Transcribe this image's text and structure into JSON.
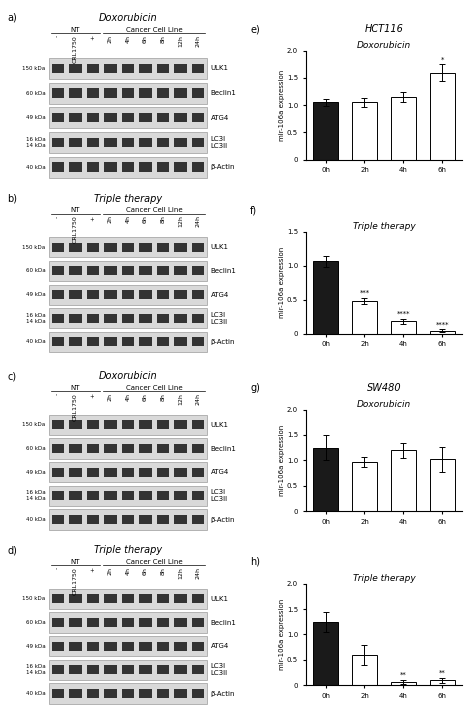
{
  "chart_data": [
    {
      "type": "blot",
      "panel_label": "a)",
      "title": "Doxorubicin",
      "lane_groups": [
        {
          "name": "NT",
          "lanes": [
            "-",
            "CRL1750",
            "+"
          ]
        },
        {
          "name": "Cancer Cell Line",
          "lanes": [
            "2h",
            "4h",
            "6h",
            "8h",
            "12h",
            "24h"
          ]
        }
      ],
      "bands": [
        "ULK1",
        "Beclin1",
        "ATG4",
        "LC3I\nLC3II",
        "β-Actin"
      ],
      "band_sizes": [
        "150 kDa",
        "60 kDa",
        "49 kDa",
        "16 kDa\n14 kDa",
        "40 kDa"
      ]
    },
    {
      "type": "blot",
      "panel_label": "b)",
      "title": "Triple therapy",
      "lane_groups": [
        {
          "name": "NT",
          "lanes": [
            "-",
            "CRL1750",
            "+"
          ]
        },
        {
          "name": "Cancer Cell Line",
          "lanes": [
            "2h",
            "4h",
            "6h",
            "8h",
            "12h",
            "24h"
          ]
        }
      ],
      "bands": [
        "ULK1",
        "Beclin1",
        "ATG4",
        "LC3I\nLC3II",
        "β-Actin"
      ],
      "band_sizes": [
        "150 kDa",
        "60 kDa",
        "49 kDa",
        "16 kDa\n14 kDa",
        "40 kDa"
      ]
    },
    {
      "type": "blot",
      "panel_label": "c)",
      "title": "Doxorubicin",
      "lane_groups": [
        {
          "name": "NT",
          "lanes": [
            "-",
            "CRL1750",
            "+"
          ]
        },
        {
          "name": "Cancer Cell Line",
          "lanes": [
            "2h",
            "4h",
            "6h",
            "8h",
            "12h",
            "24h"
          ]
        }
      ],
      "bands": [
        "ULK1",
        "Beclin1",
        "ATG4",
        "LC3I\nLC3II",
        "β-Actin"
      ],
      "band_sizes": [
        "150 kDa",
        "60 kDa",
        "49 kDa",
        "16 kDa\n14 kDa",
        "40 kDa"
      ]
    },
    {
      "type": "blot",
      "panel_label": "d)",
      "title": "Triple therapy",
      "lane_groups": [
        {
          "name": "NT",
          "lanes": [
            "-",
            "CRL1750",
            "+"
          ]
        },
        {
          "name": "Cancer Cell Line",
          "lanes": [
            "2h",
            "4h",
            "6h",
            "8h",
            "12h",
            "24h"
          ]
        }
      ],
      "bands": [
        "ULK1",
        "Beclin1",
        "ATG4",
        "LC3I\nLC3II",
        "β-Actin"
      ],
      "band_sizes": [
        "150 kDa",
        "60 kDa",
        "49 kDa",
        "16 kDa\n14 kDa",
        "40 kDa"
      ]
    },
    {
      "type": "bar",
      "panel_label": "e)",
      "subtitle": "HCT116",
      "title": "Doxorubicin",
      "categories": [
        "0h",
        "2h",
        "4h",
        "6h"
      ],
      "values": [
        1.05,
        1.05,
        1.15,
        1.6
      ],
      "errors": [
        0.07,
        0.08,
        0.1,
        0.15
      ],
      "colors": [
        "#1a1a1a",
        "#ffffff",
        "#ffffff",
        "#ffffff"
      ],
      "ylabel": "mir-106a expression",
      "ylim": [
        0,
        2.0
      ],
      "yticks": [
        0,
        0.5,
        {
          "value": 1.0,
          "label": "1.0"
        },
        1.5,
        {
          "value": 2.0,
          "label": "2.0"
        }
      ],
      "annotations": [
        {
          "category": "6h",
          "text": "*"
        }
      ]
    },
    {
      "type": "bar",
      "panel_label": "f)",
      "title": "Triple therapy",
      "categories": [
        "0h",
        "2h",
        "4h",
        "6h"
      ],
      "values": [
        1.07,
        0.48,
        0.18,
        0.04
      ],
      "errors": [
        0.08,
        0.05,
        0.04,
        0.02
      ],
      "colors": [
        "#1a1a1a",
        "#ffffff",
        "#ffffff",
        "#ffffff"
      ],
      "ylabel": "mir-106a expression",
      "ylim": [
        0,
        1.5
      ],
      "yticks": [
        0,
        0.5,
        {
          "value": 1.0,
          "label": "1.0"
        },
        1.5
      ],
      "annotations": [
        {
          "category": "2h",
          "text": "***"
        },
        {
          "category": "4h",
          "text": "****"
        },
        {
          "category": "6h",
          "text": "****"
        }
      ]
    },
    {
      "type": "bar",
      "panel_label": "g)",
      "subtitle": "SW480",
      "title": "Doxorubicin",
      "categories": [
        "0h",
        "2h",
        "4h",
        "6h"
      ],
      "values": [
        1.25,
        0.97,
        1.2,
        1.02
      ],
      "errors": [
        0.25,
        0.1,
        0.15,
        0.25
      ],
      "colors": [
        "#1a1a1a",
        "#ffffff",
        "#ffffff",
        "#ffffff"
      ],
      "ylabel": "mir-106a expression",
      "ylim": [
        0,
        2.0
      ],
      "yticks": [
        0,
        0.5,
        {
          "value": 1.0,
          "label": "1.0"
        },
        1.5,
        {
          "value": 2.0,
          "label": "2.0"
        }
      ]
    },
    {
      "type": "bar",
      "panel_label": "h)",
      "title": "Triple therapy",
      "categories": [
        "0h",
        "2h",
        "4h",
        "6h"
      ],
      "values": [
        1.25,
        0.6,
        0.07,
        0.1
      ],
      "errors": [
        0.2,
        0.2,
        0.04,
        0.05
      ],
      "colors": [
        "#1a1a1a",
        "#ffffff",
        "#ffffff",
        "#ffffff"
      ],
      "ylabel": "mir-106a expression",
      "ylim": [
        0,
        2.0
      ],
      "yticks": [
        0,
        0.5,
        {
          "value": 1.0,
          "label": "1.0"
        },
        1.5,
        {
          "value": 2.0,
          "label": "2.0"
        }
      ],
      "annotations": [
        {
          "category": "4h",
          "text": "**"
        },
        {
          "category": "6h",
          "text": "**"
        }
      ]
    }
  ]
}
